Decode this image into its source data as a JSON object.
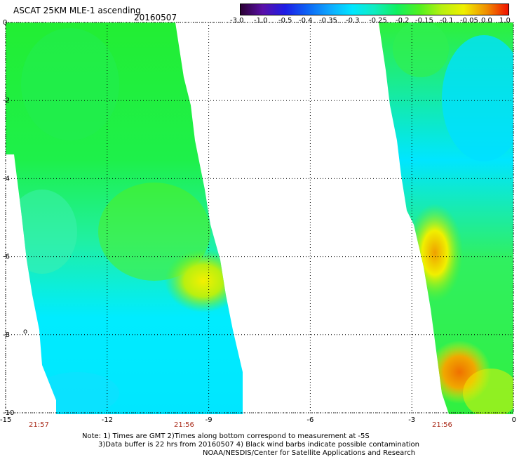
{
  "header": {
    "title": "ASCAT 25KM MLE-1 ascending",
    "date": "20160507"
  },
  "colorbar": {
    "labels": [
      "-3.0",
      "-1.0",
      "-0.5",
      "-0.4",
      "-0.35",
      "-0.3",
      "-0.25",
      "-0.2",
      "-0.15",
      "-0.1",
      "-0.05",
      "0.0",
      "1.0"
    ],
    "colors": [
      "#2a0033",
      "#5a10a8",
      "#1d1de6",
      "#0d64f5",
      "#0ea8ff",
      "#00e6ff",
      "#10ecc0",
      "#10f060",
      "#50f020",
      "#b6f010",
      "#f0f000",
      "#f09000",
      "#f01000"
    ]
  },
  "axes": {
    "x_ticks": [
      "-15",
      "-12",
      "-9",
      "-6",
      "-3",
      "0"
    ],
    "y_ticks": [
      "0",
      "-2",
      "-4",
      "-6",
      "-8",
      "-10"
    ],
    "x_range": [
      -15,
      0
    ],
    "y_range": [
      -10,
      0
    ],
    "y_letter": "o"
  },
  "pass_times": [
    "21:57",
    "21:56",
    "21:56"
  ],
  "notes": {
    "line1": "Note: 1) Times are GMT 2)Times along bottom correspond to measurement at -5S",
    "line2": "3)Data buffer is 22 hrs from 20160507 4) Black wind barbs indicate possible contamination",
    "line3": "NOAA/NESDIS/Center for Satellite Applications and Research"
  }
}
